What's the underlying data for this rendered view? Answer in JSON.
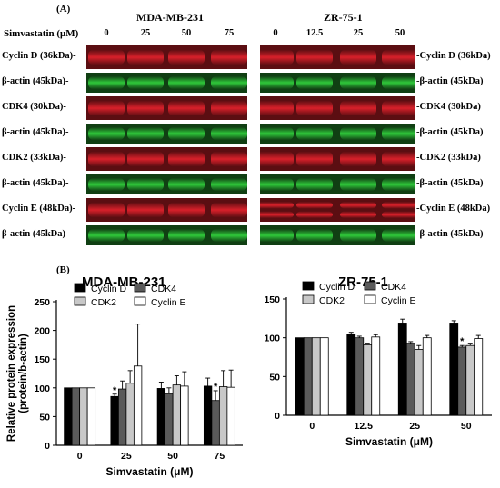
{
  "panel_a": {
    "label": "(A)",
    "cell_line_left": "MDA-MB-231",
    "cell_line_right": "ZR-75-1",
    "simvastatin_label": "Simvastatin (μM)",
    "conc_left": [
      "0",
      "25",
      "50",
      "75"
    ],
    "conc_right": [
      "0",
      "12.5",
      "25",
      "50"
    ],
    "rows": [
      {
        "left_label": "Cyclin D (36kDa)-",
        "right_label": "-Cyclin D (36kDa)",
        "type": "red",
        "target": "cyclin_d"
      },
      {
        "left_label": "β-actin (45kDa)-",
        "right_label": "-β-actin (45kDa)",
        "type": "green"
      },
      {
        "left_label": "CDK4 (30kDa)-",
        "right_label": "-CDK4 (30kDa)",
        "type": "red",
        "target": "cdk4"
      },
      {
        "left_label": "β-actin (45kDa)-",
        "right_label": "-β-actin (45kDa)",
        "type": "green"
      },
      {
        "left_label": "CDK2 (33kDa)-",
        "right_label": "-CDK2 (33kDa)",
        "type": "red",
        "target": "cdk2"
      },
      {
        "left_label": "β-actin (45kDa)-",
        "right_label": "-β-actin (45kDa)",
        "type": "green"
      },
      {
        "left_label": "Cyclin E (48kDa)-",
        "right_label": "-Cyclin E (48kDa)",
        "type": "red",
        "target": "cyclin_e"
      },
      {
        "left_label": "β-actin (45kDa)-",
        "right_label": "-β-actin (45kDa)",
        "type": "green"
      }
    ],
    "colors": {
      "red_band": "#d8202a",
      "green_band": "#2fc83a",
      "blot_bg": "#0a0a0a"
    }
  },
  "panel_b": {
    "label": "(B)"
  },
  "chart_data": [
    {
      "type": "bar",
      "title": "MDA-MB-231",
      "xlabel": "Simvastatin (μM)",
      "ylabel": "Relative protein expression\n(protein/b-actin)",
      "ylim": [
        0,
        250
      ],
      "yticks": [
        0,
        50,
        100,
        150,
        200,
        250
      ],
      "categories": [
        "0",
        "25",
        "50",
        "75"
      ],
      "series": [
        {
          "name": "Cyclin D",
          "color": "#000000",
          "values": [
            100,
            85,
            99,
            103
          ],
          "errors": [
            0,
            4,
            11,
            14
          ]
        },
        {
          "name": "CDK4",
          "color": "#5a5a5a",
          "values": [
            100,
            98,
            90,
            78
          ],
          "errors": [
            0,
            14,
            10,
            17
          ]
        },
        {
          "name": "CDK2",
          "color": "#c8c8c8",
          "values": [
            100,
            108,
            105,
            102
          ],
          "errors": [
            0,
            22,
            16,
            28
          ]
        },
        {
          "name": "Cyclin E",
          "color": "#ffffff",
          "values": [
            100,
            138,
            103,
            101
          ],
          "errors": [
            0,
            73,
            25,
            30
          ]
        }
      ],
      "significance": [
        {
          "category": "25",
          "series": "Cyclin D",
          "mark": "*"
        },
        {
          "category": "75",
          "series": "CDK4",
          "mark": "*"
        }
      ],
      "legend": "top-left",
      "grid": false
    },
    {
      "type": "bar",
      "title": "ZR-75-1",
      "xlabel": "Simvastatin (μM)",
      "ylabel": "",
      "ylim": [
        0,
        150
      ],
      "yticks": [
        0,
        50,
        100,
        150
      ],
      "categories": [
        "0",
        "12.5",
        "25",
        "50"
      ],
      "series": [
        {
          "name": "Cyclin D",
          "color": "#000000",
          "values": [
            100,
            104,
            119,
            119
          ],
          "errors": [
            0,
            3,
            5,
            3
          ]
        },
        {
          "name": "CDK4",
          "color": "#5a5a5a",
          "values": [
            100,
            100,
            93,
            88
          ],
          "errors": [
            0,
            2,
            2,
            2
          ]
        },
        {
          "name": "CDK2",
          "color": "#c8c8c8",
          "values": [
            100,
            91,
            85,
            90
          ],
          "errors": [
            0,
            2,
            5,
            3
          ]
        },
        {
          "name": "Cyclin E",
          "color": "#ffffff",
          "values": [
            100,
            101,
            100,
            99
          ],
          "errors": [
            0,
            3,
            3,
            4
          ]
        }
      ],
      "significance": [
        {
          "category": "50",
          "series": "CDK4",
          "mark": "*"
        }
      ],
      "legend": "top-right",
      "grid": false
    }
  ]
}
